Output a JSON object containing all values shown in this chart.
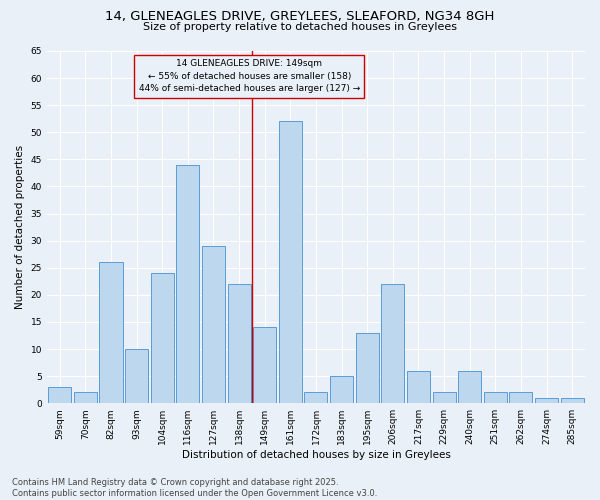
{
  "title": "14, GLENEAGLES DRIVE, GREYLEES, SLEAFORD, NG34 8GH",
  "subtitle": "Size of property relative to detached houses in Greylees",
  "xlabel": "Distribution of detached houses by size in Greylees",
  "ylabel": "Number of detached properties",
  "categories": [
    "59sqm",
    "70sqm",
    "82sqm",
    "93sqm",
    "104sqm",
    "116sqm",
    "127sqm",
    "138sqm",
    "149sqm",
    "161sqm",
    "172sqm",
    "183sqm",
    "195sqm",
    "206sqm",
    "217sqm",
    "229sqm",
    "240sqm",
    "251sqm",
    "262sqm",
    "274sqm",
    "285sqm"
  ],
  "values": [
    3,
    2,
    26,
    10,
    24,
    44,
    29,
    22,
    14,
    52,
    2,
    5,
    13,
    22,
    6,
    2,
    6,
    2,
    2,
    1,
    1
  ],
  "bar_color": "#bdd7ee",
  "bar_edge_color": "#5b9bd5",
  "background_color": "#eaf0f8",
  "grid_color": "#ffffff",
  "vline_x_index": 8,
  "vline_color": "#cc0000",
  "annotation_line1": "14 GLENEAGLES DRIVE: 149sqm",
  "annotation_line2": "← 55% of detached houses are smaller (158)",
  "annotation_line3": "44% of semi-detached houses are larger (127) →",
  "ylim": [
    0,
    65
  ],
  "yticks": [
    0,
    5,
    10,
    15,
    20,
    25,
    30,
    35,
    40,
    45,
    50,
    55,
    60,
    65
  ],
  "footer_line1": "Contains HM Land Registry data © Crown copyright and database right 2025.",
  "footer_line2": "Contains public sector information licensed under the Open Government Licence v3.0.",
  "title_fontsize": 9.5,
  "subtitle_fontsize": 8,
  "axis_label_fontsize": 7.5,
  "tick_fontsize": 6.5,
  "annotation_fontsize": 6.5,
  "footer_fontsize": 6
}
